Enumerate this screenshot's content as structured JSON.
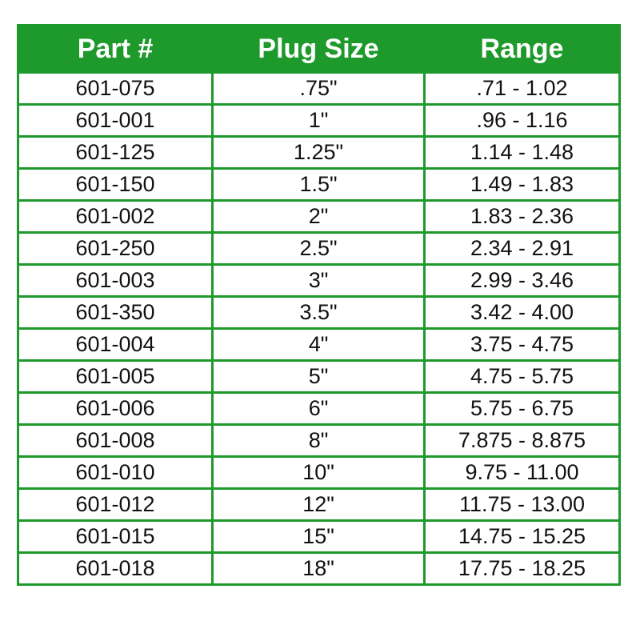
{
  "table": {
    "headers": [
      "Part #",
      "Plug Size",
      "Range"
    ],
    "rows": [
      [
        "601-075",
        ".75\"",
        ".71 - 1.02"
      ],
      [
        "601-001",
        "1\"",
        ".96 - 1.16"
      ],
      [
        "601-125",
        "1.25\"",
        "1.14 - 1.48"
      ],
      [
        "601-150",
        "1.5\"",
        "1.49 - 1.83"
      ],
      [
        "601-002",
        "2\"",
        "1.83 - 2.36"
      ],
      [
        "601-250",
        "2.5\"",
        "2.34 - 2.91"
      ],
      [
        "601-003",
        "3\"",
        "2.99 - 3.46"
      ],
      [
        "601-350",
        "3.5\"",
        "3.42 - 4.00"
      ],
      [
        "601-004",
        "4\"",
        "3.75 - 4.75"
      ],
      [
        "601-005",
        "5\"",
        "4.75 - 5.75"
      ],
      [
        "601-006",
        "6\"",
        "5.75 - 6.75"
      ],
      [
        "601-008",
        "8\"",
        "7.875 - 8.875"
      ],
      [
        "601-010",
        "10\"",
        "9.75 - 11.00"
      ],
      [
        "601-012",
        "12\"",
        "11.75 - 13.00"
      ],
      [
        "601-015",
        "15\"",
        "14.75 - 15.25"
      ],
      [
        "601-018",
        "18\"",
        "17.75 - 18.25"
      ]
    ]
  },
  "colors": {
    "accent": "#1d9a2b"
  }
}
